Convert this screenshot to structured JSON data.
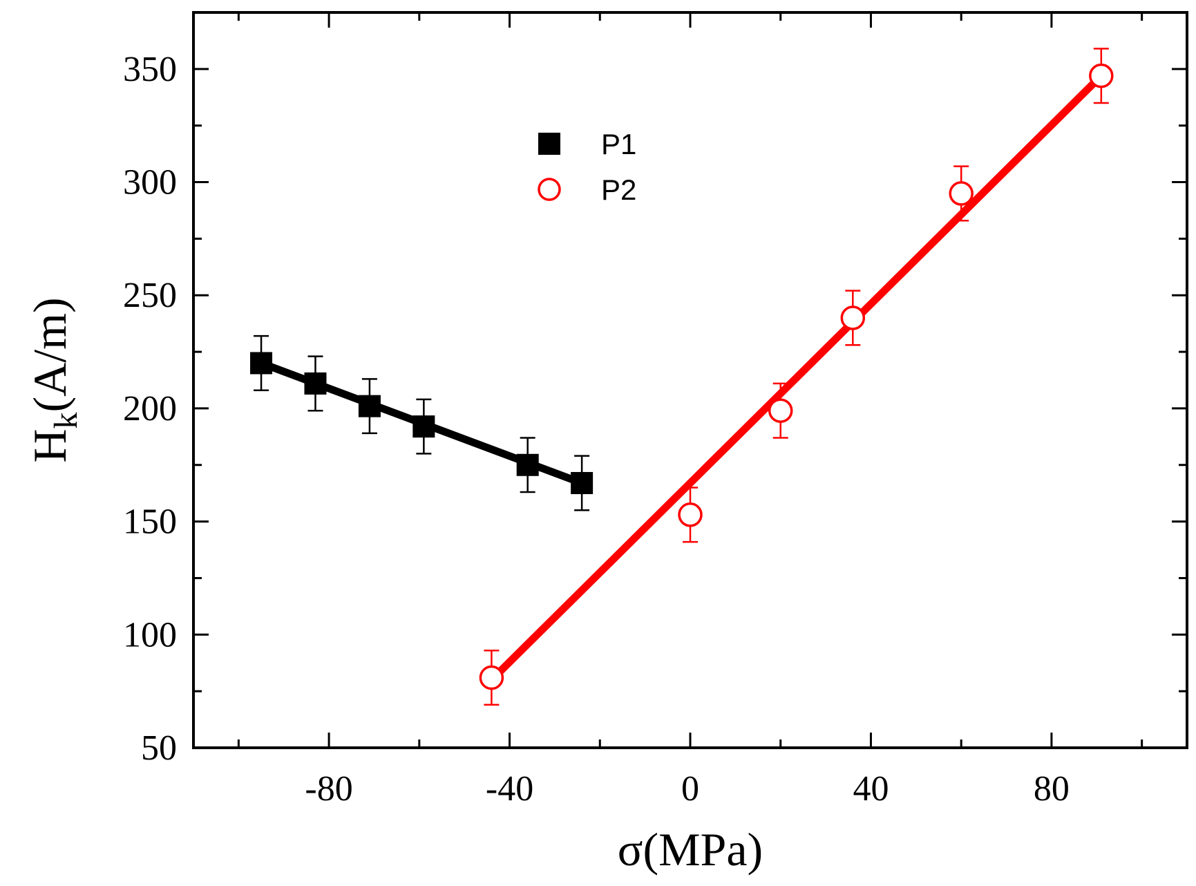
{
  "chart_data": {
    "type": "scatter",
    "title": "",
    "xlabel": "σ(MPa)",
    "ylabel": {
      "main": "H",
      "subscript": "k",
      "suffix": "(A/m)"
    },
    "xlim": [
      -110,
      110
    ],
    "ylim": [
      50,
      375
    ],
    "x_ticks": [
      -80,
      -40,
      0,
      40,
      80
    ],
    "x_tick_labels": [
      "-80",
      "-40",
      "0",
      "40",
      "80"
    ],
    "x_minor_ticks": [
      -100,
      -60,
      -20,
      20,
      60,
      100
    ],
    "y_ticks": [
      50,
      100,
      150,
      200,
      250,
      300,
      350
    ],
    "y_tick_labels": [
      "50",
      "100",
      "150",
      "200",
      "250",
      "300",
      "350"
    ],
    "y_minor_ticks": [
      75,
      125,
      175,
      225,
      275,
      325
    ],
    "grid": false,
    "legend_position": "upper-center",
    "series": [
      {
        "name": "P1",
        "marker": "filled-square",
        "color": "#000000",
        "x": [
          -95,
          -83,
          -71,
          -59,
          -36,
          -24
        ],
        "y": [
          220,
          211,
          201,
          192,
          175,
          167
        ],
        "error": [
          12,
          12,
          12,
          12,
          12,
          12
        ],
        "fit": {
          "x": [
            -95,
            -24
          ],
          "y": [
            220,
            167
          ]
        }
      },
      {
        "name": "P2",
        "marker": "open-circle",
        "color": "#ff0000",
        "x": [
          -44,
          0,
          20,
          36,
          60,
          91
        ],
        "y": [
          81,
          153,
          199,
          240,
          295,
          347
        ],
        "error": [
          12,
          12,
          12,
          12,
          12,
          12
        ],
        "fit": {
          "x": [
            -44,
            91
          ],
          "y": [
            80,
            347
          ]
        }
      }
    ]
  }
}
